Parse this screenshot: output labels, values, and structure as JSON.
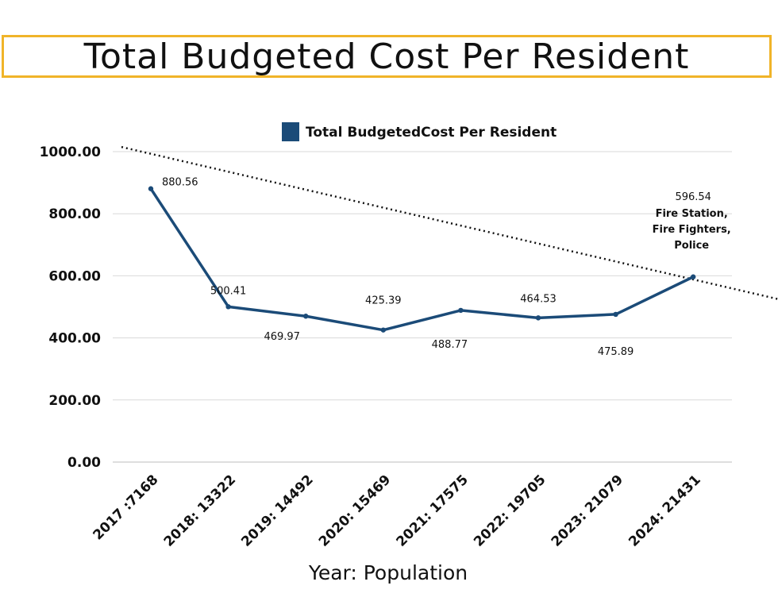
{
  "page": {
    "title": "Total Budgeted Cost Per Resident"
  },
  "colors": {
    "line": "#1b4b78",
    "title_border": "#f0b429",
    "grid": "#d9d9d9",
    "trend": "#111111"
  },
  "chart_data": {
    "type": "line",
    "title": "Total Budgeted Cost Per Resident",
    "xlabel": "Year: Population",
    "ylabel": "",
    "ylim": [
      0,
      1000
    ],
    "yticks": [
      0,
      200,
      400,
      600,
      800,
      1000
    ],
    "ytick_labels": [
      "0.00",
      "200.00",
      "400.00",
      "600.00",
      "800.00",
      "1000.00"
    ],
    "categories": [
      "2017 :7168",
      "2018: 13322",
      "2019: 14492",
      "2020: 15469",
      "2021: 17575",
      "2022: 19705",
      "2023: 21079",
      "2024: 21431"
    ],
    "series": [
      {
        "name": "Total BudgetedCost Per Resident",
        "values": [
          880.56,
          500.41,
          469.97,
          425.39,
          488.77,
          464.53,
          475.89,
          596.54
        ],
        "data_labels": [
          "880.56",
          "500.41",
          "469.97",
          "425.39",
          "488.77",
          "464.53",
          "475.89",
          "596.54"
        ]
      }
    ],
    "trendline": {
      "style": "dotted",
      "start_value": 1015,
      "end_value": 525
    },
    "annotation": {
      "category": "2024: 21431",
      "lines": [
        "Fire Station,",
        "Fire Fighters,",
        "Police"
      ]
    },
    "legend_position": "top-center",
    "grid": true
  }
}
